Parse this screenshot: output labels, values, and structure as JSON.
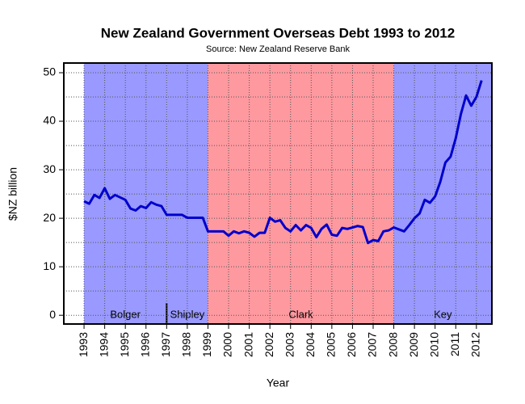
{
  "chart_data": {
    "type": "line",
    "title": "New Zealand Government Overseas Debt 1993 to 2012",
    "subtitle": "Source: New Zealand Reserve Bank",
    "x_label": "Year",
    "y_label": "$NZ billion",
    "x": [
      1993,
      1993.25,
      1993.5,
      1993.75,
      1994,
      1994.25,
      1994.5,
      1994.75,
      1995,
      1995.25,
      1995.5,
      1995.75,
      1996,
      1996.25,
      1996.5,
      1996.75,
      1997,
      1997.25,
      1997.5,
      1997.75,
      1998,
      1998.25,
      1998.5,
      1998.75,
      1999,
      1999.25,
      1999.5,
      1999.75,
      2000,
      2000.25,
      2000.5,
      2000.75,
      2001,
      2001.25,
      2001.5,
      2001.75,
      2002,
      2002.25,
      2002.5,
      2002.75,
      2003,
      2003.25,
      2003.5,
      2003.75,
      2004,
      2004.25,
      2004.5,
      2004.75,
      2005,
      2005.25,
      2005.5,
      2005.75,
      2006,
      2006.25,
      2006.5,
      2006.75,
      2007,
      2007.25,
      2007.5,
      2007.75,
      2008,
      2008.25,
      2008.5,
      2008.75,
      2009,
      2009.25,
      2009.5,
      2009.75,
      2010,
      2010.25,
      2010.5,
      2010.75,
      2011,
      2011.25,
      2011.5,
      2011.75,
      2012,
      2012.25
    ],
    "series": [
      {
        "name": "Overseas debt",
        "color": "#0000cc",
        "values": [
          23.5,
          23,
          24.8,
          24.2,
          26.2,
          24,
          24.8,
          24.3,
          23.8,
          22,
          21.6,
          22.5,
          22.1,
          23.3,
          22.8,
          22.5,
          20.7,
          20.7,
          20.7,
          20.7,
          20.1,
          20.1,
          20.1,
          20.1,
          17.3,
          17.3,
          17.3,
          17.3,
          16.4,
          17.3,
          16.9,
          17.3,
          17,
          16.2,
          17,
          17,
          20.1,
          19.3,
          19.6,
          18,
          17.3,
          18.6,
          17.5,
          18.6,
          18,
          16.1,
          17.8,
          18.7,
          16.6,
          16.4,
          18,
          17.8,
          18.1,
          18.4,
          18.2,
          14.9,
          15.5,
          15.3,
          17.3,
          17.5,
          18.1,
          17.7,
          17.3,
          18.6,
          20,
          21,
          23.8,
          23.2,
          24.5,
          27.5,
          31.5,
          32.7,
          36.5,
          41.5,
          45.3,
          43.2,
          45,
          48.4
        ]
      }
    ],
    "regions": [
      {
        "label": "Bolger",
        "start": 1993,
        "end": 1997,
        "color": "#9999ff"
      },
      {
        "label": "Shipley",
        "start": 1997,
        "end": 1999,
        "color": "#9999ff"
      },
      {
        "label": "Clark",
        "start": 1999,
        "end": 2008,
        "color": "#ff99a0"
      },
      {
        "label": "Key",
        "start": 2008,
        "end": 2012.75,
        "color": "#9999ff"
      }
    ],
    "xlim": [
      1992.02,
      2012.75
    ],
    "ylim": [
      -1.8,
      52
    ],
    "xticks": [
      1993,
      1994,
      1995,
      1996,
      1997,
      1998,
      1999,
      2000,
      2001,
      2002,
      2003,
      2004,
      2005,
      2006,
      2007,
      2008,
      2009,
      2010,
      2011,
      2012
    ],
    "yticks": [
      0,
      10,
      20,
      30,
      40,
      50
    ],
    "ygrid": [
      0,
      5,
      10,
      15,
      20,
      25,
      30,
      35,
      40,
      45,
      50
    ],
    "grid": true
  }
}
